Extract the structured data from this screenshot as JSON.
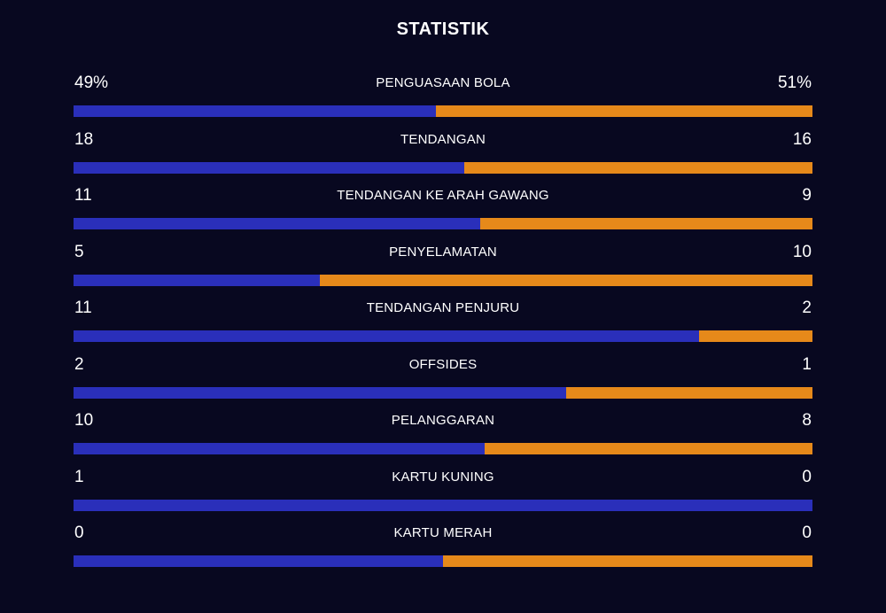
{
  "title": "STATISTIK",
  "colors": {
    "background": "#080820",
    "home_bar": "#2a2fba",
    "away_bar": "#e6891a",
    "text": "#ffffff"
  },
  "stats": [
    {
      "label": "PENGUASAAN BOLA",
      "home": "49%",
      "away": "51%",
      "home_share": 0.49
    },
    {
      "label": "TENDANGAN",
      "home": "18",
      "away": "16",
      "home_share": 0.529
    },
    {
      "label": "TENDANGAN KE ARAH GAWANG",
      "home": "11",
      "away": "9",
      "home_share": 0.55
    },
    {
      "label": "PENYELAMATAN",
      "home": "5",
      "away": "10",
      "home_share": 0.333
    },
    {
      "label": "TENDANGAN PENJURU",
      "home": "11",
      "away": "2",
      "home_share": 0.846
    },
    {
      "label": "OFFSIDES",
      "home": "2",
      "away": "1",
      "home_share": 0.667
    },
    {
      "label": "PELANGGARAN",
      "home": "10",
      "away": "8",
      "home_share": 0.556
    },
    {
      "label": "KARTU KUNING",
      "home": "1",
      "away": "0",
      "home_share": 1.0
    },
    {
      "label": "KARTU MERAH",
      "home": "0",
      "away": "0",
      "home_share": 0.5
    }
  ]
}
